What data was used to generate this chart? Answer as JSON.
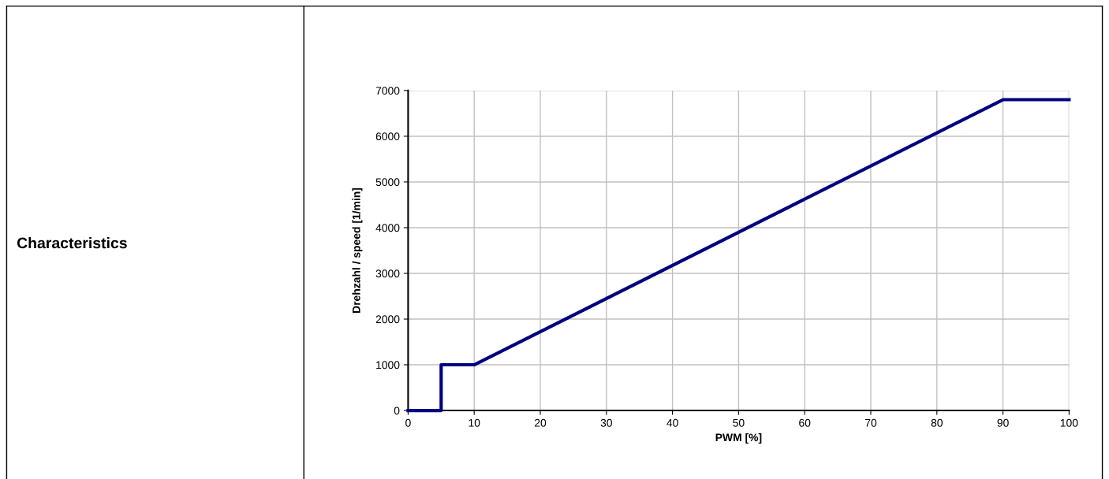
{
  "chart_data": {
    "type": "line",
    "xlabel": "PWM [%]",
    "ylabel": "Drehzahl / speed [1/min]",
    "annotations": [
      "Characteristics"
    ],
    "series": [
      {
        "color": "#000080",
        "x": [
          0,
          5,
          5,
          10,
          90,
          100
        ],
        "values": [
          0,
          0,
          1000,
          1000,
          6800,
          6800
        ]
      }
    ],
    "xlim": [
      0,
      100
    ],
    "xticks": [
      0,
      10,
      20,
      30,
      40,
      50,
      60,
      70,
      80,
      90,
      100
    ],
    "ylim": [
      0,
      7000
    ],
    "yticks": [
      0,
      1000,
      2000,
      3000,
      4000,
      5000,
      6000,
      7000
    ],
    "grid": true,
    "marker": "none",
    "line_style": "solid"
  }
}
